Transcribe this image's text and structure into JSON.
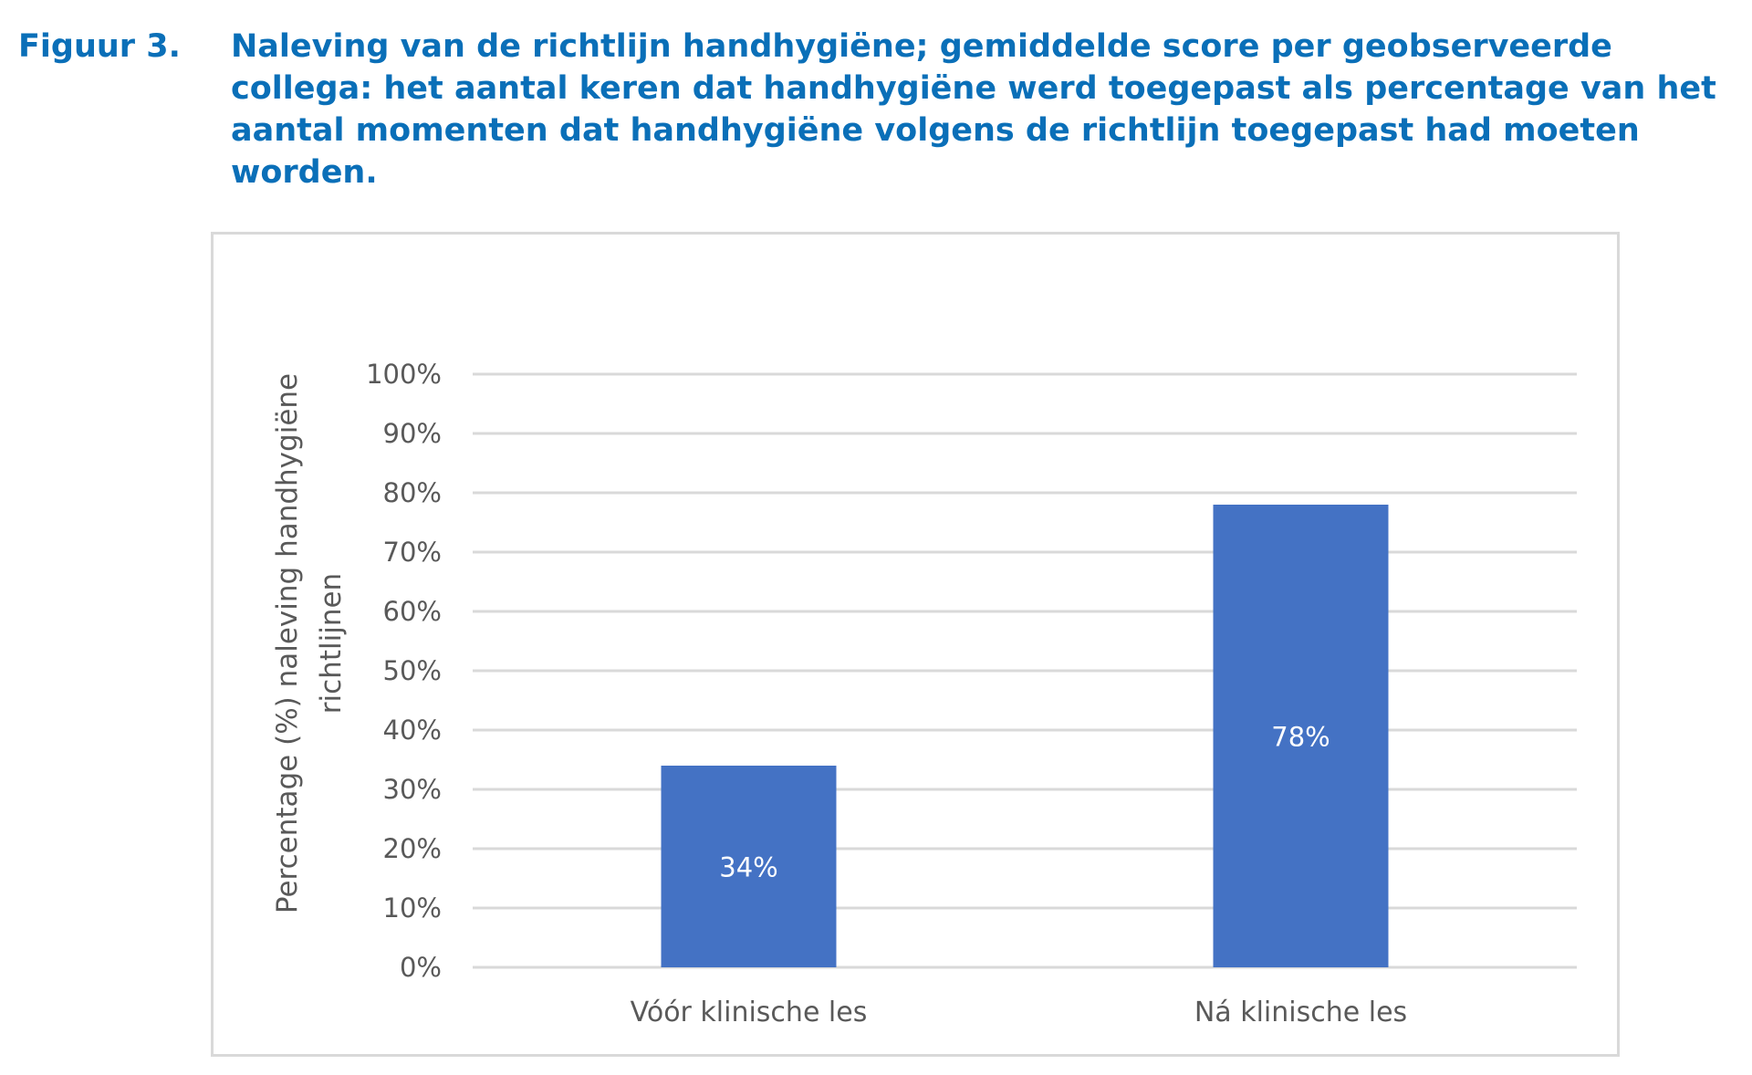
{
  "caption": {
    "label": "Figuur 3.",
    "text": "Naleving van de richtlijn handhygiëne; gemiddelde score per geobserveerde collega: het aantal keren dat handhygiëne werd toegepast als percentage van het aantal momenten dat handhygiëne volgens de richtlijn toegepast had moeten worden."
  },
  "chart_data": {
    "type": "bar",
    "title": "",
    "xlabel": "",
    "ylabel_lines": [
      "Percentage (%) naleving handhygiëne",
      "richtlijnen"
    ],
    "categories": [
      "Vóór klinische les",
      "Ná klinische les"
    ],
    "values": [
      34,
      78
    ],
    "data_labels": [
      "34%",
      "78%"
    ],
    "ylim": [
      0,
      100
    ],
    "yticks": [
      0,
      10,
      20,
      30,
      40,
      50,
      60,
      70,
      80,
      90,
      100
    ],
    "ytick_labels": [
      "0%",
      "10%",
      "20%",
      "30%",
      "40%",
      "50%",
      "60%",
      "70%",
      "80%",
      "90%",
      "100%"
    ],
    "grid": true,
    "bar_color": "#4472c4",
    "grid_color": "#d9d9d9",
    "text_color": "#595959",
    "data_label_color": "#ffffff"
  }
}
